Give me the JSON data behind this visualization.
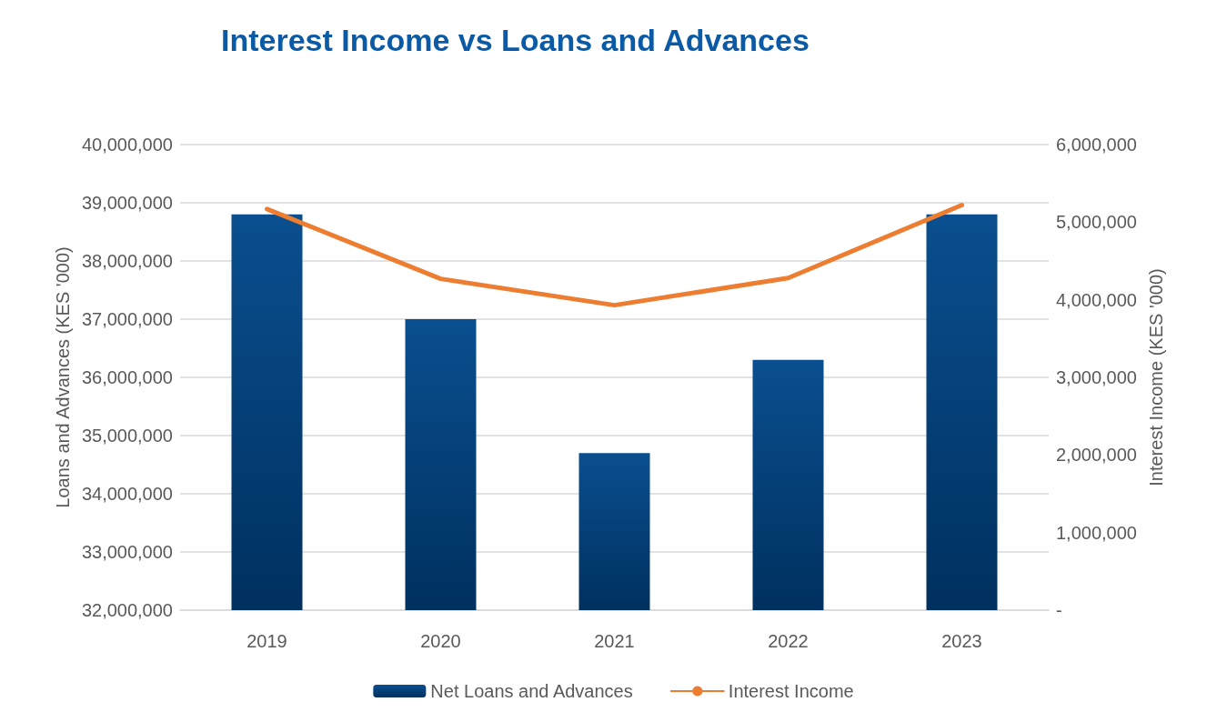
{
  "chart_data": {
    "type": "bar",
    "title": "Interest Income vs Loans and Advances",
    "ylabel": "Loans and Advances (KES '000)",
    "y2label": "Interest Income (KES '000)",
    "categories": [
      "2019",
      "2020",
      "2021",
      "2022",
      "2023"
    ],
    "series": [
      {
        "name": "Net Loans and Advances",
        "color": "#0a4f8f",
        "values": [
          38800000,
          37000000,
          34700000,
          36300000,
          38800000
        ]
      },
      {
        "name": "Interest Income",
        "type": "line",
        "axis": "y2",
        "color": "#ed7d31",
        "values": [
          5170000,
          4270000,
          3930000,
          4280000,
          5220000
        ]
      }
    ],
    "ylim": [
      32000000,
      40000000
    ],
    "yticks": [
      {
        "value": 32000000,
        "label": "32,000,000"
      },
      {
        "value": 33000000,
        "label": "33,000,000"
      },
      {
        "value": 34000000,
        "label": "34,000,000"
      },
      {
        "value": 35000000,
        "label": "35,000,000"
      },
      {
        "value": 36000000,
        "label": "36,000,000"
      },
      {
        "value": 37000000,
        "label": "37,000,000"
      },
      {
        "value": 38000000,
        "label": "38,000,000"
      },
      {
        "value": 39000000,
        "label": "39,000,000"
      },
      {
        "value": 40000000,
        "label": "40,000,000"
      }
    ],
    "y2lim": [
      0,
      6000000
    ],
    "y2ticks": [
      {
        "value": 0,
        "label": "-"
      },
      {
        "value": 1000000,
        "label": "1,000,000"
      },
      {
        "value": 2000000,
        "label": "2,000,000"
      },
      {
        "value": 3000000,
        "label": "3,000,000"
      },
      {
        "value": 4000000,
        "label": "4,000,000"
      },
      {
        "value": 5000000,
        "label": "5,000,000"
      },
      {
        "value": 6000000,
        "label": "6,000,000"
      }
    ],
    "grid": "y",
    "legend": "bottom",
    "marker": "none"
  }
}
